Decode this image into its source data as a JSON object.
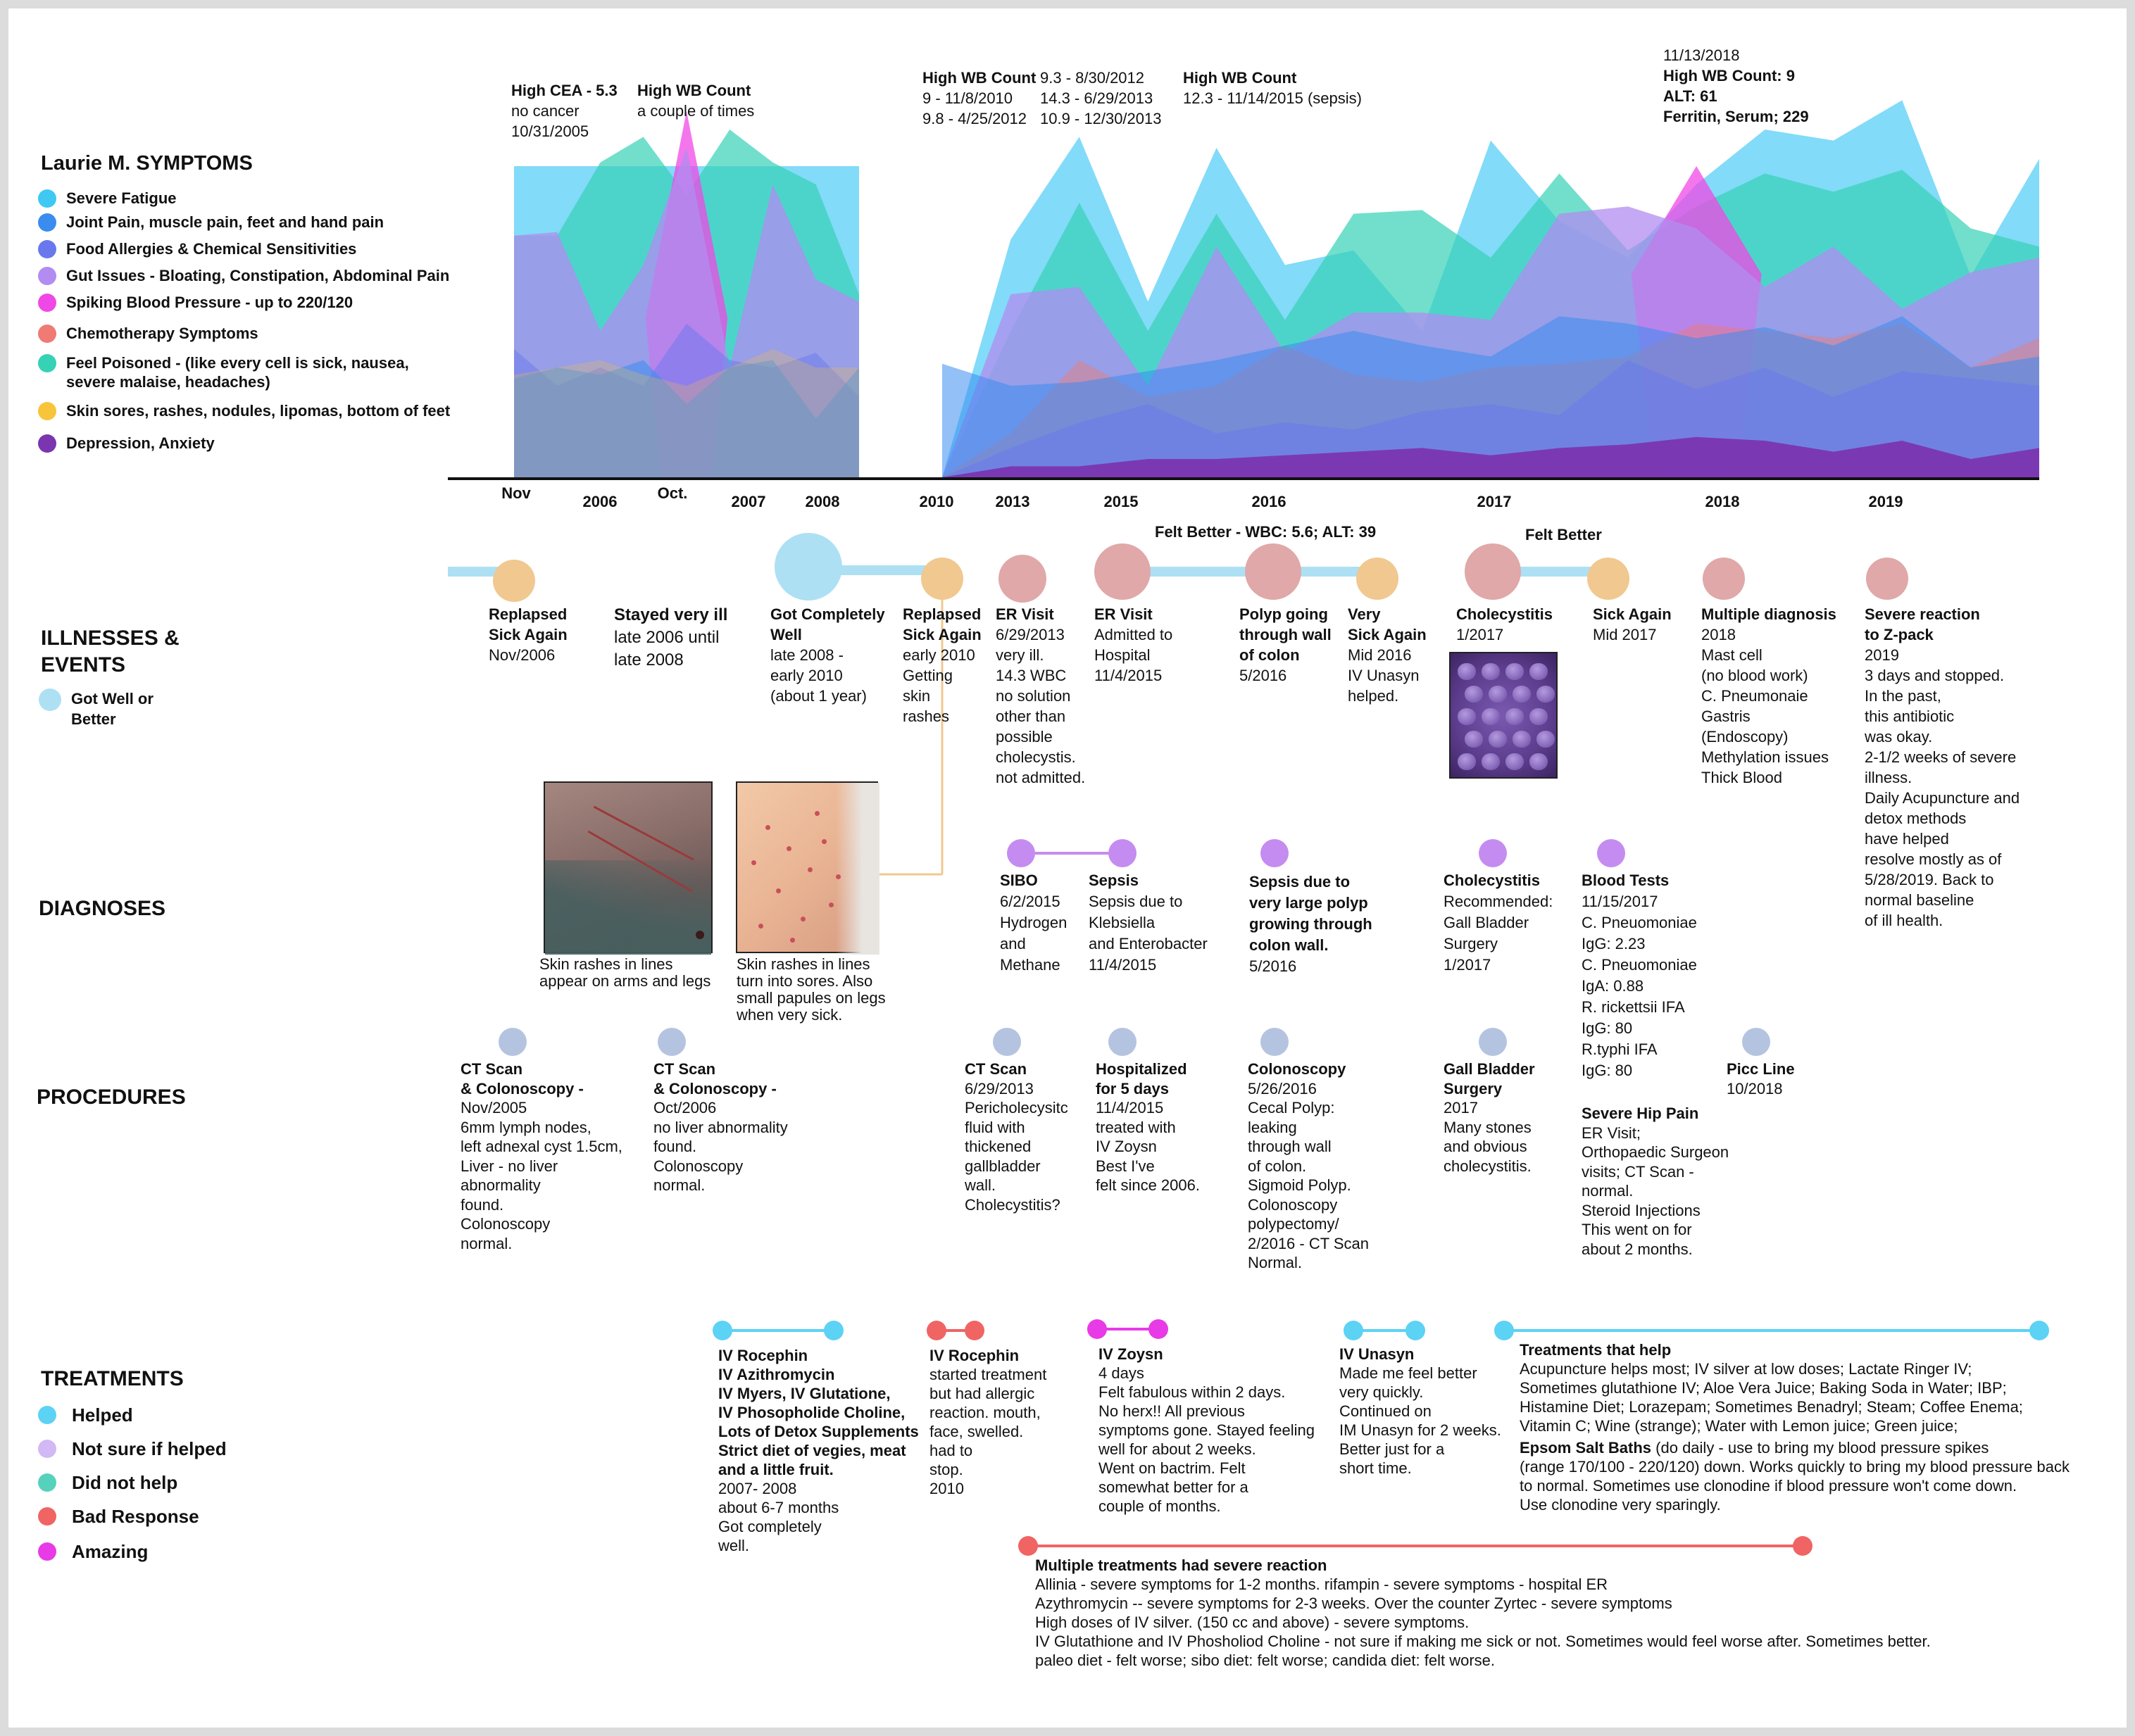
{
  "colors": {
    "severe_fatigue": "#3fc8f4",
    "joint_pain": "#3a8cf0",
    "food_allergies": "#6a78ee",
    "gut_issues": "#b28cf0",
    "spiking_bp": "#f048e6",
    "chemo": "#f07a74",
    "feel_poisoned": "#36d2b6",
    "skin_sores": "#f8c43a",
    "depression": "#7a35b0",
    "got_well": "#aee0f4",
    "illness_dot": "#f0c890",
    "er_dot": "#e0a8a8",
    "diag_dot": "#c48cf0",
    "proc_dot": "#b4c4e0"
  },
  "legend": {
    "title": "Laurie M. SYMPTOMS",
    "items": [
      {
        "label": "Severe Fatigue",
        "color": "#3fc8f4"
      },
      {
        "label": "Joint Pain, muscle pain, feet and hand pain",
        "color": "#3a8cf0"
      },
      {
        "label": "Food Allergies & Chemical Sensitivities",
        "color": "#6a78ee"
      },
      {
        "label": "Gut Issues - Bloating, Constipation, Abdominal Pain",
        "color": "#b28cf0"
      },
      {
        "label": "Spiking Blood Pressure - up to 220/120",
        "color": "#f048e6"
      },
      {
        "label": "Chemotherapy Symptoms",
        "color": "#f07a74"
      },
      {
        "label": "Feel Poisoned - (like every cell is sick, nausea,",
        "label2": "severe malaise, headaches)",
        "color": "#36d2b6"
      },
      {
        "label": "Skin sores, rashes, nodules, lipomas, bottom of feet",
        "color": "#f8c43a"
      },
      {
        "label": "Depression, Anxiety",
        "color": "#7a35b0"
      }
    ]
  },
  "sections": {
    "illnesses": "ILLNESSES &",
    "illnesses2": "EVENTS",
    "got_well": "Got Well or",
    "got_well2": "Better",
    "diagnoses": "DIAGNOSES",
    "procedures": "PROCEDURES",
    "treatments": "TREATMENTS"
  },
  "treatment_legend": [
    {
      "label": "Helped",
      "color": "#5cd2f4"
    },
    {
      "label": "Not sure if helped",
      "color": "#d2b8f4"
    },
    {
      "label": "Did not help",
      "color": "#56d2bc"
    },
    {
      "label": "Bad Response",
      "color": "#f06464"
    },
    {
      "label": "Amazing",
      "color": "#e83ae6"
    }
  ],
  "chart_data": {
    "type": "area",
    "title": "",
    "xlabel": "",
    "ylabel": "",
    "x_ticks": [
      "Nov",
      "2006",
      "Oct.",
      "2007",
      "2008",
      "2010",
      "2013",
      "2015",
      "2016",
      "2017",
      "2018",
      "2019"
    ],
    "segments": [
      {
        "range": [
          "Nov 2005",
          "2008"
        ],
        "series": {
          "severe_fatigue": [
            0.85,
            0.85,
            0.85,
            0.85,
            0.85,
            0.85,
            0.85,
            0.85,
            0.85
          ],
          "feel_poisoned": [
            0.66,
            0.66,
            0.86,
            0.93,
            0.77,
            0.95,
            0.86,
            0.8,
            0.5
          ],
          "spiking_bp": [
            0,
            0,
            0,
            0,
            1.0,
            0,
            0,
            0,
            0
          ],
          "gut_issues": [
            0.66,
            0.67,
            0.4,
            0.58,
            0.9,
            0.3,
            0.8,
            0.54,
            0.48
          ],
          "food_allergies": [
            0.35,
            0.25,
            0.3,
            0.25,
            0.42,
            0.32,
            0.3,
            0.34,
            0.22
          ],
          "joint_pain": [
            0.27,
            0.3,
            0.28,
            0.32,
            0.2,
            0.3,
            0.32,
            0.16,
            0.3
          ],
          "skin_sores": [
            0.28,
            0.3,
            0.32,
            0.28,
            0.25,
            0.3,
            0.35,
            0.3,
            0.3
          ]
        }
      },
      {
        "range": [
          "2010",
          "2019"
        ],
        "series": {
          "severe_fatigue": [
            0.0,
            0.65,
            0.93,
            0.48,
            0.9,
            0.58,
            0.62,
            0.4,
            0.92,
            0.7,
            0.6,
            0.8,
            0.95,
            0.92,
            1.03,
            0.55,
            0.87
          ],
          "feel_poisoned": [
            0.0,
            0.4,
            0.75,
            0.4,
            0.72,
            0.43,
            0.72,
            0.73,
            0.6,
            0.83,
            0.62,
            0.74,
            0.83,
            0.78,
            0.84,
            0.68,
            0.63
          ],
          "spiking_bp": [
            0,
            0,
            0,
            0,
            0,
            0,
            0,
            0,
            0,
            0,
            0,
            0.85,
            0,
            0,
            0,
            0,
            0
          ],
          "gut_issues": [
            0.0,
            0.5,
            0.52,
            0.25,
            0.63,
            0.34,
            0.45,
            0.45,
            0.43,
            0.72,
            0.74,
            0.68,
            0.52,
            0.63,
            0.46,
            0.56,
            0.6
          ],
          "chemo": [
            0.0,
            0.12,
            0.32,
            0.22,
            0.25,
            0.36,
            0.28,
            0.26,
            0.3,
            0.31,
            0.33,
            0.42,
            0.4,
            0.38,
            0.42,
            0.3,
            0.38
          ],
          "joint_pain": [
            0.31,
            0.25,
            0.26,
            0.29,
            0.32,
            0.36,
            0.4,
            0.36,
            0.33,
            0.44,
            0.42,
            0.38,
            0.41,
            0.36,
            0.44,
            0.3,
            0.33
          ],
          "food_allergies": [
            0.0,
            0.08,
            0.15,
            0.2,
            0.12,
            0.15,
            0.13,
            0.18,
            0.2,
            0.17,
            0.32,
            0.24,
            0.3,
            0.22,
            0.29,
            0.27,
            0.25
          ],
          "depression": [
            0.0,
            0.03,
            0.03,
            0.05,
            0.05,
            0.06,
            0.07,
            0.08,
            0.06,
            0.08,
            0.09,
            0.11,
            0.1,
            0.07,
            0.1,
            0.05,
            0.08
          ]
        }
      }
    ],
    "annotations": [
      {
        "lines": [
          "High CEA - 5.3",
          "no cancer",
          "10/31/2005"
        ]
      },
      {
        "lines": [
          "High WB Count",
          "a couple of times"
        ]
      },
      {
        "lines": [
          "High WB Count",
          "9 - 11/8/2010",
          "9.8 - 4/25/2012"
        ]
      },
      {
        "lines": [
          "9.3 - 8/30/2012",
          "14.3 - 6/29/2013",
          "10.9 - 12/30/2013"
        ]
      },
      {
        "lines": [
          "High WB Count",
          "12.3 - 11/14/2015 (sepsis)"
        ]
      },
      {
        "lines": [
          "11/13/2018",
          "High WB Count: 9",
          "ALT:  61",
          "Ferritin, Serum;  229"
        ]
      }
    ]
  },
  "timeline": {
    "felt_better_1": "Felt Better - WBC: 5.6; ALT: 39",
    "felt_better_2": "Felt Better"
  },
  "events": [
    {
      "title": "Replapsed",
      "title2": "Sick Again",
      "lines": [
        "Nov/2006"
      ]
    },
    {
      "title": "Stayed very ill",
      "lines": [
        "late 2006 until",
        "late 2008"
      ]
    },
    {
      "title": "Got Completely",
      "title2": "Well",
      "lines": [
        "late 2008 -",
        "early 2010",
        "(about 1 year)"
      ]
    },
    {
      "title": "Replapsed",
      "title2": "Sick Again",
      "lines": [
        "early 2010",
        "Getting",
        "skin",
        "rashes"
      ]
    },
    {
      "title": "ER Visit",
      "lines": [
        "6/29/2013",
        "very ill.",
        "14.3 WBC",
        "no solution",
        "other than",
        "possible",
        "cholecystis.",
        "not admitted."
      ]
    },
    {
      "title": "ER Visit",
      "lines": [
        "Admitted to",
        "Hospital",
        "11/4/2015"
      ]
    },
    {
      "title": "Polyp going",
      "title2": "through wall",
      "title3": "of colon",
      "lines": [
        "5/2016"
      ]
    },
    {
      "title": "Very",
      "title2": "Sick Again",
      "lines": [
        "Mid 2016",
        "IV Unasyn",
        "helped."
      ]
    },
    {
      "title": "Cholecystitis",
      "lines": [
        "1/2017"
      ]
    },
    {
      "title": "Sick Again",
      "lines": [
        "Mid 2017"
      ]
    },
    {
      "title": "Multiple diagnosis",
      "lines": [
        "2018",
        "Mast cell",
        "(no blood work)",
        "C. Pneumonaie",
        "Gastris",
        "(Endoscopy)",
        "Methylation issues",
        "Thick Blood"
      ]
    },
    {
      "title": "Severe reaction",
      "title2": "to Z-pack",
      "lines": [
        "2019",
        "3 days and stopped.",
        "In the past,",
        "this antibiotic",
        "was okay.",
        "2-1/2 weeks of severe",
        "illness.",
        "Daily Acupuncture and",
        "detox methods",
        "have helped",
        "resolve mostly as of",
        "5/28/2019. Back to",
        "normal baseline",
        "of ill health."
      ]
    }
  ],
  "photos": [
    {
      "caption": [
        "Skin rashes in lines",
        "appear on arms and legs"
      ]
    },
    {
      "caption": [
        "Skin rashes in lines",
        "turn into sores. Also",
        "small papules on legs",
        "when very sick."
      ]
    }
  ],
  "diagnoses": [
    {
      "title": "SIBO",
      "lines": [
        "6/2/2015",
        "Hydrogen",
        "and",
        "Methane"
      ]
    },
    {
      "title": "Sepsis",
      "lines": [
        "Sepsis due to",
        "Klebsiella",
        "and Enterobacter",
        "11/4/2015"
      ]
    },
    {
      "title": "Sepsis due  to",
      "title2": "very large polyp",
      "title3": "growing through",
      "title4": "colon wall.",
      "lines": [
        "5/2016"
      ]
    },
    {
      "title": "Cholecystitis",
      "lines": [
        "Recommended:",
        "Gall Bladder",
        "Surgery",
        "1/2017"
      ]
    },
    {
      "title": "Blood Tests",
      "lines": [
        "11/15/2017",
        "C. Pneuomoniae",
        "IgG: 2.23",
        "C. Pneuomoniae",
        "IgA: 0.88",
        "R. rickettsii IFA",
        "IgG: 80",
        "R.typhi IFA",
        "IgG: 80"
      ]
    }
  ],
  "procedures": [
    {
      "title": "CT Scan",
      "title2": "& Colonoscopy -",
      "lines": [
        "Nov/2005",
        "6mm lymph nodes,",
        "left adnexal cyst 1.5cm,",
        "Liver - no liver",
        "abnormality",
        "found.",
        "Colonoscopy",
        "normal."
      ]
    },
    {
      "title": "CT Scan",
      "title2": "& Colonoscopy -",
      "lines": [
        "Oct/2006",
        "no liver abnormality",
        "found.",
        "Colonoscopy",
        "normal."
      ]
    },
    {
      "title": "CT Scan",
      "lines": [
        "6/29/2013",
        "Pericholecysitc",
        "fluid with",
        "thickened",
        "gallbladder",
        "wall.",
        "Cholecystitis?"
      ]
    },
    {
      "title": "Hospitalized",
      "title2": "for 5 days",
      "lines": [
        "11/4/2015",
        "treated with",
        "IV Zoysn",
        "Best I've",
        "felt since 2006."
      ]
    },
    {
      "title": "Colonoscopy",
      "lines": [
        "5/26/2016",
        "Cecal Polyp:",
        "leaking",
        "through wall",
        "of colon.",
        "Sigmoid Polyp.",
        "Colonoscopy",
        "polypectomy/",
        "2/2016 - CT Scan",
        "Normal."
      ]
    },
    {
      "title": "Gall Bladder",
      "title2": "Surgery",
      "lines": [
        "2017",
        "Many stones",
        "and obvious",
        "cholecystitis."
      ]
    },
    {
      "title": "Severe Hip Pain",
      "lines": [
        "ER Visit;",
        "Orthopaedic Surgeon",
        "visits; CT Scan -",
        "normal.",
        "Steroid Injections",
        "This went on for",
        "about 2 months."
      ]
    },
    {
      "title": "Picc Line",
      "lines": [
        "10/2018"
      ]
    }
  ],
  "treatments": [
    {
      "bold": [
        "IV Rocephin",
        "IV Azithromycin",
        "IV Myers, IV Glutatione,",
        "IV Phosopholide Choline,",
        "Lots of Detox Supplements",
        "Strict diet of vegies, meat",
        "and a little fruit."
      ],
      "lines": [
        "2007- 2008",
        "about 6-7 months",
        "Got completely",
        "well."
      ]
    },
    {
      "bold": [
        "IV Rocephin"
      ],
      "lines": [
        "started treatment",
        "but had allergic",
        "reaction. mouth,",
        "face, swelled.",
        "had to",
        "stop.",
        "2010"
      ]
    },
    {
      "bold": [
        "IV Zoysn"
      ],
      "lines": [
        "4 days",
        "Felt fabulous within 2 days.",
        "No herx!! All previous",
        "symptoms gone. Stayed feeling",
        "well for about 2 weeks.",
        "Went on bactrim. Felt",
        "somewhat better for a",
        "couple of months."
      ]
    },
    {
      "bold": [
        "IV Unasyn"
      ],
      "lines": [
        "Made me feel better",
        "very quickly.",
        "Continued on",
        "IM Unasyn for 2 weeks.",
        "Better just for a",
        "short time."
      ]
    },
    {
      "bold": [
        "Treatments that help"
      ],
      "lines": [
        "Acupuncture helps most; IV silver at low doses; Lactate Ringer IV;",
        "Sometimes glutathione IV; Aloe Vera Juice; Baking Soda in Water; IBP;",
        "Histamine Diet; Lorazepam; Sometimes Benadryl; Steam; Coffee Enema;",
        "Vitamin C; Wine (strange); Water with Lemon juice; Green juice;"
      ],
      "bold2": "Epsom Salt Baths",
      "after_bold2": " (do daily - use to bring my blood pressure spikes",
      "lines2": [
        "(range 170/100 - 220/120) down. Works  quickly to bring my blood pressure back",
        "to normal. Sometimes use clonodine if blood pressure won't come down.",
        "Use clonodine very sparingly."
      ]
    },
    {
      "bold": [
        "Multiple treatments had severe reaction"
      ],
      "lines": [
        "Allinia - severe symptoms for 1-2 months. rifampin - severe symptoms - hospital ER",
        "Azythromycin -- severe symptoms for 2-3 weeks. Over the counter Zyrtec - severe symptoms",
        "High doses of IV silver. (150 cc and above) - severe symptoms.",
        "IV Glutathione and IV Phosholiod Choline - not sure if making me sick or not. Sometimes would feel worse after. Sometimes better.",
        "paleo diet - felt worse; sibo diet: felt worse; candida diet: felt worse."
      ]
    }
  ]
}
